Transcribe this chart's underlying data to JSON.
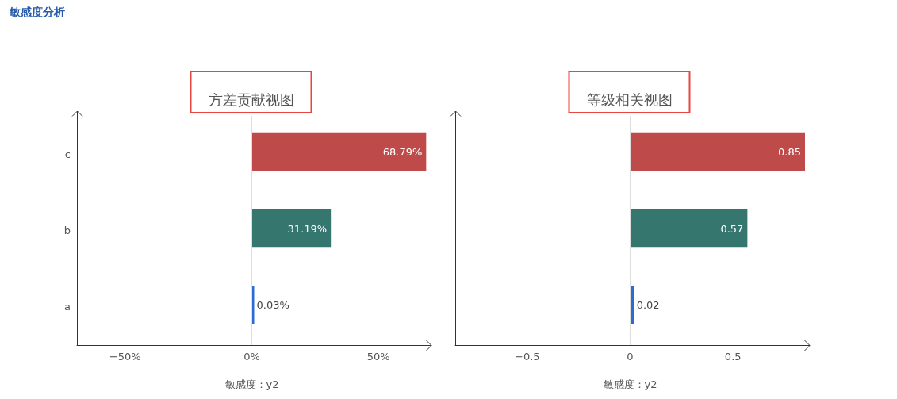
{
  "chart_data": [
    {
      "type": "bar",
      "orientation": "horizontal",
      "title": "方差贡献视图",
      "xlabel": "敏感度：y2",
      "annotations": [
        "敏感度分析"
      ],
      "categories": [
        "c",
        "b",
        "a"
      ],
      "values": [
        68.79,
        31.19,
        0.03
      ],
      "colors": [
        "#bf4a4a",
        "#35766e",
        "#2d6bd1"
      ],
      "value_labels": [
        "68.79%",
        "31.19%",
        "0.03%"
      ],
      "xlim": [
        -69,
        69
      ],
      "xticks": [
        {
          "value": -50,
          "label": "−50%"
        },
        {
          "value": 0,
          "label": "0%"
        },
        {
          "value": 50,
          "label": "50%"
        }
      ],
      "ref_lines": [
        {
          "axis": "x",
          "value": 0,
          "color": "#dddddd"
        }
      ]
    },
    {
      "type": "bar",
      "orientation": "horizontal",
      "title": "等级相关视图",
      "xlabel": "敏感度：y2",
      "categories": [
        null,
        null,
        null
      ],
      "values": [
        0.85,
        0.57,
        0.02
      ],
      "colors": [
        "#bf4a4a",
        "#35766e",
        "#2d6bd1"
      ],
      "data_labels": true,
      "xlim": [
        -0.85,
        0.85
      ],
      "xticks": [
        {
          "value": -0.5,
          "label": "−0.5"
        },
        0,
        0.5
      ],
      "ref_lines": [
        {
          "axis": "x",
          "value": 0,
          "color": "#dddddd"
        }
      ]
    }
  ]
}
